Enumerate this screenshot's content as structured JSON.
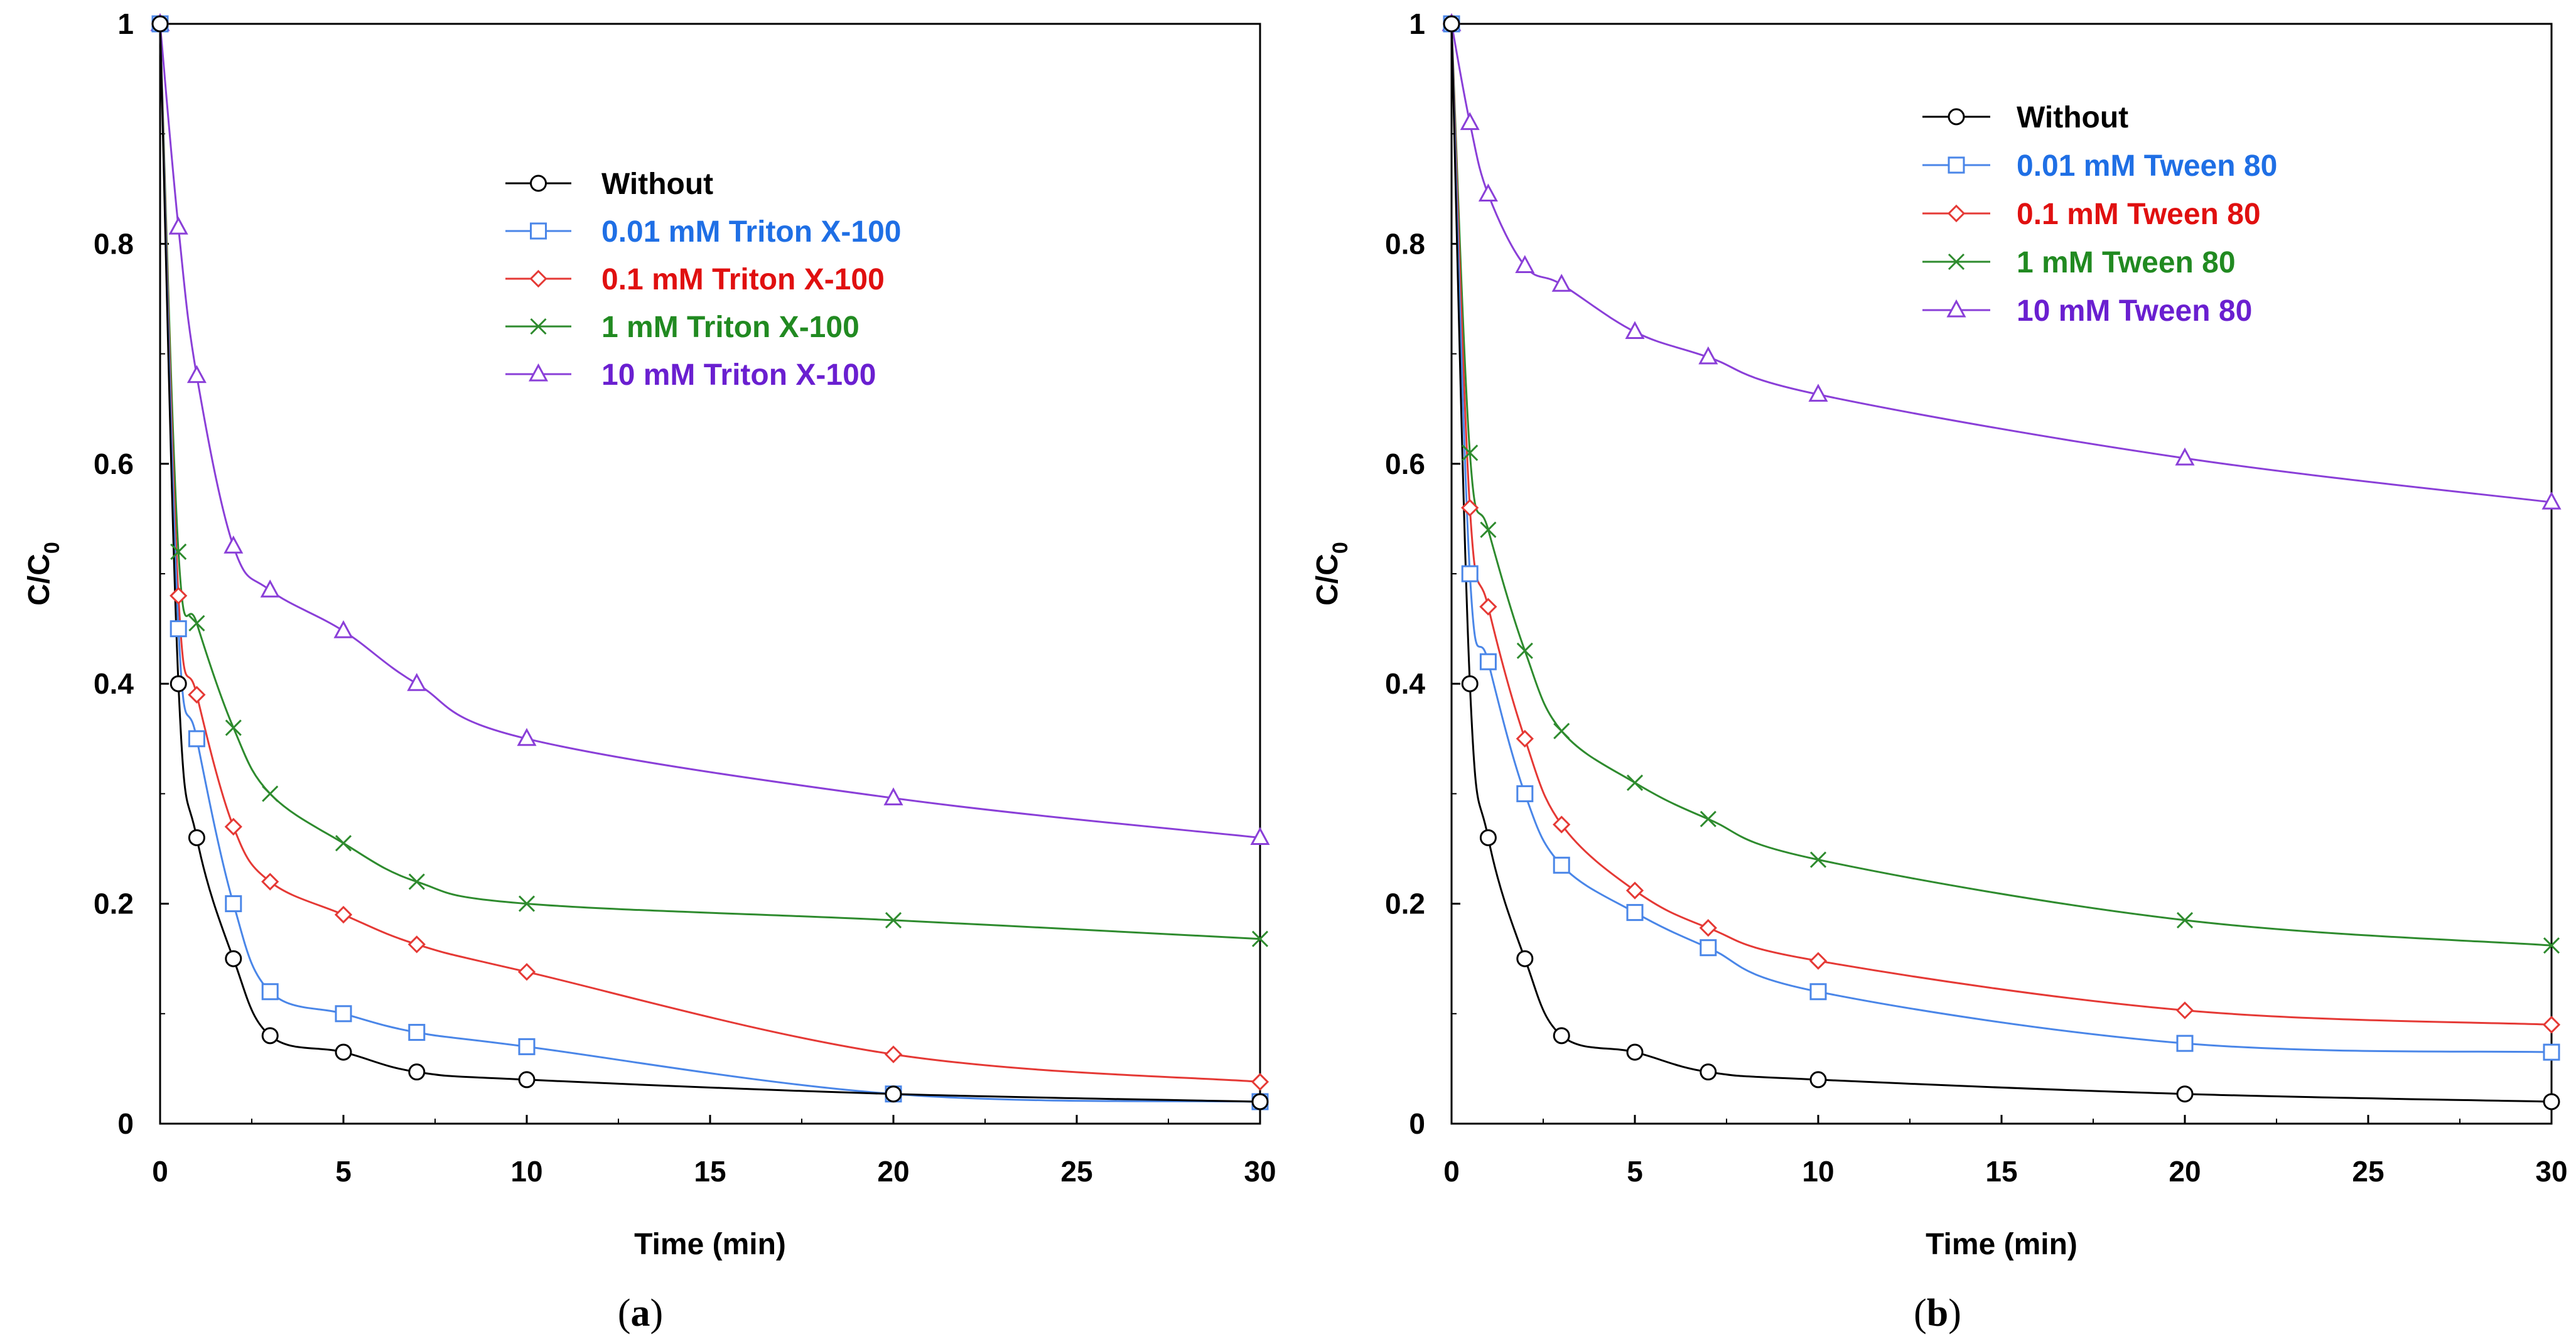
{
  "chart_data": [
    {
      "type": "line",
      "panel_label": "a",
      "xlabel": "Time (min)",
      "ylabel": "C/C",
      "ylabel_sub": "0",
      "xlim": [
        0,
        30
      ],
      "ylim": [
        0,
        1
      ],
      "xticks": [
        "0",
        "5",
        "10",
        "15",
        "20",
        "25",
        "30"
      ],
      "yticks": [
        "0",
        "0.2",
        "0.4",
        "0.6",
        "0.8",
        "1"
      ],
      "x": [
        0,
        0.5,
        1,
        2,
        3,
        5,
        7,
        10,
        20,
        30
      ],
      "series": [
        {
          "name": "Without",
          "marker": "circle",
          "color": "#000000",
          "text_color": "#000000",
          "values": [
            1,
            0.4,
            0.26,
            0.15,
            0.08,
            0.065,
            0.047,
            0.04,
            0.027,
            0.02
          ]
        },
        {
          "name": "0.01 mM Triton X-100",
          "marker": "square",
          "color": "#4a86e8",
          "text_color": "#1f6fe5",
          "values": [
            1,
            0.45,
            0.35,
            0.2,
            0.12,
            0.1,
            0.083,
            0.07,
            0.027,
            0.02
          ]
        },
        {
          "name": "0.1 mM Triton X-100",
          "marker": "diamond",
          "color": "#e53935",
          "text_color": "#e01010",
          "values": [
            1,
            0.48,
            0.39,
            0.27,
            0.22,
            0.19,
            0.163,
            0.138,
            0.063,
            0.038
          ]
        },
        {
          "name": "1 mM Triton X-100",
          "marker": "x",
          "color": "#2e8b2e",
          "text_color": "#218a21",
          "values": [
            1,
            0.52,
            0.455,
            0.36,
            0.3,
            0.255,
            0.22,
            0.2,
            0.185,
            0.168
          ]
        },
        {
          "name": "10 mM Triton X-100",
          "marker": "triangle",
          "color": "#8a3fd8",
          "text_color": "#6a1fd0",
          "values": [
            1,
            0.815,
            0.68,
            0.525,
            0.485,
            0.448,
            0.4,
            0.35,
            0.296,
            0.26
          ]
        }
      ]
    },
    {
      "type": "line",
      "panel_label": "b",
      "xlabel": "Time (min)",
      "ylabel": "C/C",
      "ylabel_sub": "0",
      "xlim": [
        0,
        30
      ],
      "ylim": [
        0,
        1
      ],
      "xticks": [
        "0",
        "5",
        "10",
        "15",
        "20",
        "25",
        "30"
      ],
      "yticks": [
        "0",
        "0.2",
        "0.4",
        "0.6",
        "0.8",
        "1"
      ],
      "x": [
        0,
        0.5,
        1,
        2,
        3,
        5,
        7,
        10,
        20,
        30
      ],
      "series": [
        {
          "name": "Without",
          "marker": "circle",
          "color": "#000000",
          "text_color": "#000000",
          "values": [
            1,
            0.4,
            0.26,
            0.15,
            0.08,
            0.065,
            0.047,
            0.04,
            0.027,
            0.02
          ]
        },
        {
          "name": "0.01 mM Tween 80",
          "marker": "square",
          "color": "#4a86e8",
          "text_color": "#1f6fe5",
          "values": [
            1,
            0.5,
            0.42,
            0.3,
            0.235,
            0.192,
            0.16,
            0.12,
            0.073,
            0.065
          ]
        },
        {
          "name": "0.1 mM Tween 80",
          "marker": "diamond",
          "color": "#e53935",
          "text_color": "#e01010",
          "values": [
            1,
            0.56,
            0.47,
            0.35,
            0.272,
            0.212,
            0.178,
            0.148,
            0.103,
            0.09
          ]
        },
        {
          "name": "1 mM Tween 80",
          "marker": "x",
          "color": "#2e8b2e",
          "text_color": "#218a21",
          "values": [
            1,
            0.61,
            0.54,
            0.43,
            0.357,
            0.31,
            0.277,
            0.24,
            0.185,
            0.162
          ]
        },
        {
          "name": "10 mM Tween 80",
          "marker": "triangle",
          "color": "#8a3fd8",
          "text_color": "#6a1fd0",
          "values": [
            1,
            0.91,
            0.845,
            0.78,
            0.763,
            0.72,
            0.697,
            0.663,
            0.605,
            0.565
          ]
        }
      ]
    }
  ]
}
